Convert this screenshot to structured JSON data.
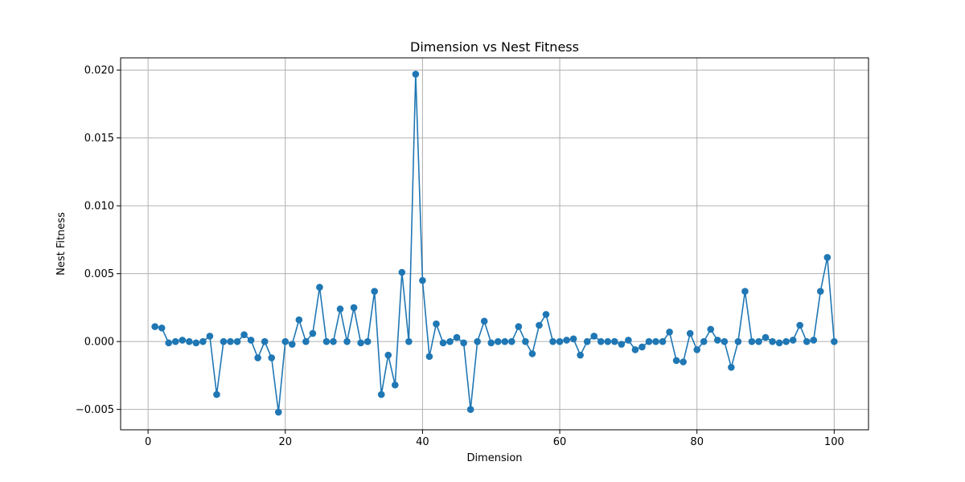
{
  "chart_data": {
    "type": "line",
    "title": "Dimension vs Nest Fitness",
    "xlabel": "Dimension",
    "ylabel": "Nest Fitness",
    "xlim": [
      -4,
      105
    ],
    "ylim": [
      -0.0065,
      0.0209
    ],
    "xticks": [
      0,
      20,
      40,
      60,
      80,
      100
    ],
    "xtick_labels": [
      "0",
      "20",
      "40",
      "60",
      "80",
      "100"
    ],
    "yticks": [
      -0.005,
      0.0,
      0.005,
      0.01,
      0.015,
      0.02
    ],
    "ytick_labels": [
      "−0.005",
      "0.000",
      "0.005",
      "0.010",
      "0.015",
      "0.020"
    ],
    "grid": true,
    "marker": "circle",
    "series": [
      {
        "color": "#1f77b4",
        "x": [
          1,
          2,
          3,
          4,
          5,
          6,
          7,
          8,
          9,
          10,
          11,
          12,
          13,
          14,
          15,
          16,
          17,
          18,
          19,
          20,
          21,
          22,
          23,
          24,
          25,
          26,
          27,
          28,
          29,
          30,
          31,
          32,
          33,
          34,
          35,
          36,
          37,
          38,
          39,
          40,
          41,
          42,
          43,
          44,
          45,
          46,
          47,
          48,
          49,
          50,
          51,
          52,
          53,
          54,
          55,
          56,
          57,
          58,
          59,
          60,
          61,
          62,
          63,
          64,
          65,
          66,
          67,
          68,
          69,
          70,
          71,
          72,
          73,
          74,
          75,
          76,
          77,
          78,
          79,
          80,
          81,
          82,
          83,
          84,
          85,
          86,
          87,
          88,
          89,
          90,
          91,
          92,
          93,
          94,
          95,
          96,
          97,
          98,
          99,
          100
        ],
        "y": [
          0.0011,
          0.001,
          -0.0001,
          0.0,
          0.0001,
          0.0,
          -0.0001,
          0.0,
          0.0004,
          -0.0039,
          0.0,
          0.0,
          0.0,
          0.0005,
          0.0001,
          -0.0012,
          0.0,
          -0.0012,
          -0.0052,
          0.0,
          -0.0002,
          0.0016,
          0.0,
          0.0006,
          0.004,
          0.0,
          0.0,
          0.0024,
          0.0,
          0.0025,
          -0.0001,
          0.0,
          0.0037,
          -0.0039,
          -0.001,
          -0.0032,
          0.0051,
          0.0,
          0.0197,
          0.0045,
          -0.0011,
          0.0013,
          -0.0001,
          0.0,
          0.0003,
          -0.0001,
          -0.005,
          0.0,
          0.0015,
          -0.0001,
          0.0,
          0.0,
          0.0,
          0.0011,
          0.0,
          -0.0009,
          0.0012,
          0.002,
          0.0,
          0.0,
          0.0001,
          0.0002,
          -0.001,
          0.0,
          0.0004,
          0.0,
          0.0,
          0.0,
          -0.0002,
          0.0001,
          -0.0006,
          -0.0004,
          0.0,
          0.0,
          0.0,
          0.0007,
          -0.0014,
          -0.0015,
          0.0006,
          -0.0006,
          0.0,
          0.0009,
          0.0001,
          0.0,
          -0.0019,
          0.0,
          0.0037,
          0.0,
          0.0,
          0.0003,
          0.0,
          -0.0001,
          0.0,
          0.0001,
          0.0012,
          0.0,
          0.0001,
          0.0037,
          0.0062,
          0.0
        ]
      }
    ]
  }
}
